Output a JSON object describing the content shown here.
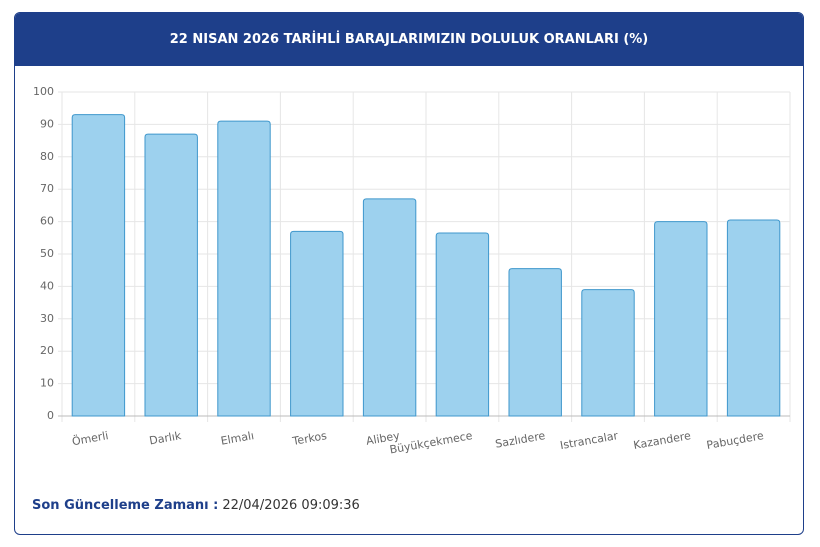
{
  "chart_data": {
    "type": "bar",
    "title": "22 NISAN 2026 TARİHLİ BARAJLARIMIZIN DOLULUK ORANLARI (%)",
    "categories": [
      "Ömerli",
      "Darlık",
      "Elmalı",
      "Terkos",
      "Alibey",
      "Büyükçekmece",
      "Sazlıdere",
      "Istrancalar",
      "Kazandere",
      "Pabuçdere"
    ],
    "values": [
      93,
      87,
      91,
      57,
      67,
      56.5,
      45.5,
      39,
      60,
      60.5
    ],
    "color": "#9dd1ee",
    "border_color": "#3f97cc",
    "ylim": [
      0,
      100
    ],
    "yticks": [
      0,
      10,
      20,
      30,
      40,
      50,
      60,
      70,
      80,
      90,
      100
    ],
    "grid": true
  },
  "footer": {
    "label": "Son Güncelleme Zamanı :",
    "value": "22/04/2026 09:09:36"
  }
}
